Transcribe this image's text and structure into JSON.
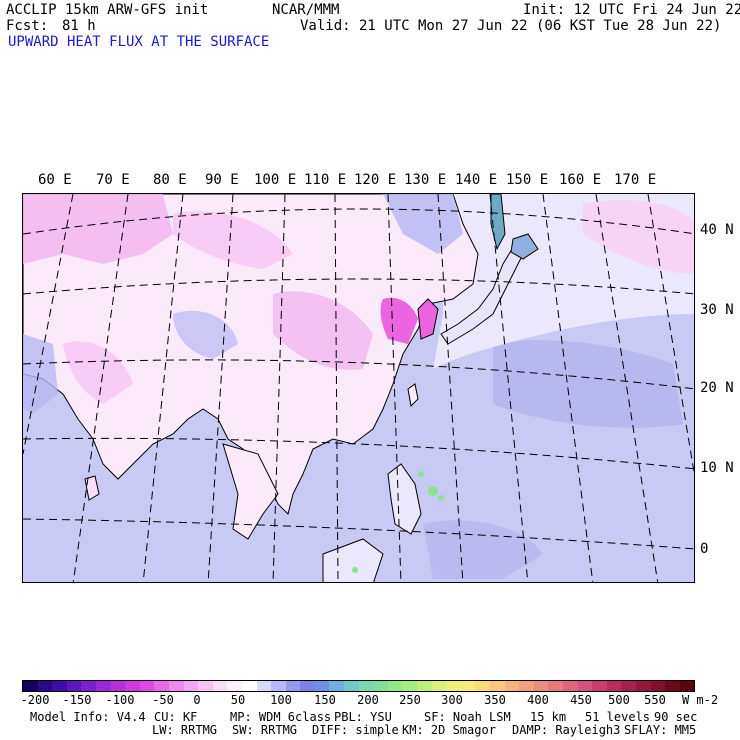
{
  "header": {
    "model": "ACCLIP 15km ARW-GFS init",
    "org": "NCAR/MMM",
    "init": "Init: 12 UTC Fri 24 Jun 22",
    "fcst_label": "Fcst:",
    "fcst_value": "81 h",
    "valid": "Valid: 21 UTC Mon 27 Jun 22 (06 KST Tue 28 Jun 22)",
    "field": "UPWARD HEAT FLUX AT THE SURFACE"
  },
  "map": {
    "lon_labels": [
      "60 E",
      "70 E",
      "80 E",
      "90 E",
      "100 E",
      "110 E",
      "120 E",
      "130 E",
      "140 E",
      "150 E",
      "160 E",
      "170 E"
    ],
    "lat_labels": [
      "40 N",
      "30 N",
      "20 N",
      "10 N",
      "0"
    ],
    "colors": {
      "ocean": "#c9c9f6",
      "ocean_dark": "#a8a8ee",
      "land_pale": "#fbeaf9",
      "land_pink": "#f4b6ee",
      "land_magenta": "#ec64e0",
      "green": "#8fe08f"
    }
  },
  "colorbar": {
    "tick_labels": [
      "-200",
      "-150",
      "-100",
      "-50",
      "0",
      "50",
      "100",
      "150",
      "200",
      "250",
      "300",
      "350",
      "400",
      "450",
      "500",
      "550"
    ],
    "unit": "W m-2",
    "colors": [
      "#14005a",
      "#2a0a86",
      "#3a10a8",
      "#5a18c0",
      "#7a20d0",
      "#9a28d8",
      "#b830dc",
      "#d038e0",
      "#e048e4",
      "#e868e8",
      "#ee88ec",
      "#f2a8f0",
      "#f6c4f4",
      "#f8dcf8",
      "#fcf0fc",
      "#ffffff",
      "#d8d8fa",
      "#b8b8f4",
      "#9898ee",
      "#8080ea",
      "#7090e6",
      "#70b0e0",
      "#70c8c8",
      "#78d8b0",
      "#80e098",
      "#90e888",
      "#a8ec80",
      "#c0f07c",
      "#d8f07c",
      "#ecf07c",
      "#f8ec7c",
      "#f8dc7c",
      "#f8c87c",
      "#f4b47c",
      "#f0a07c",
      "#ec8c7c",
      "#e8787c",
      "#e0647c",
      "#d8507c",
      "#cc3c6c",
      "#bc2c5c",
      "#a8204c",
      "#94183c",
      "#80102c",
      "#6c081c",
      "#5a0410"
    ]
  },
  "footer": {
    "line1": [
      "Model Info: V4.4",
      "CU: KF",
      "MP: WDM 6class",
      "PBL: YSU",
      "SF: Noah LSM",
      "15 km",
      "51 levels",
      "90 sec"
    ],
    "line2": [
      "LW: RRTMG",
      "SW: RRTMG",
      "DIFF: simple",
      "KM: 2D Smagor",
      "DAMP: Rayleigh3",
      "SFLAY: MM5"
    ]
  }
}
